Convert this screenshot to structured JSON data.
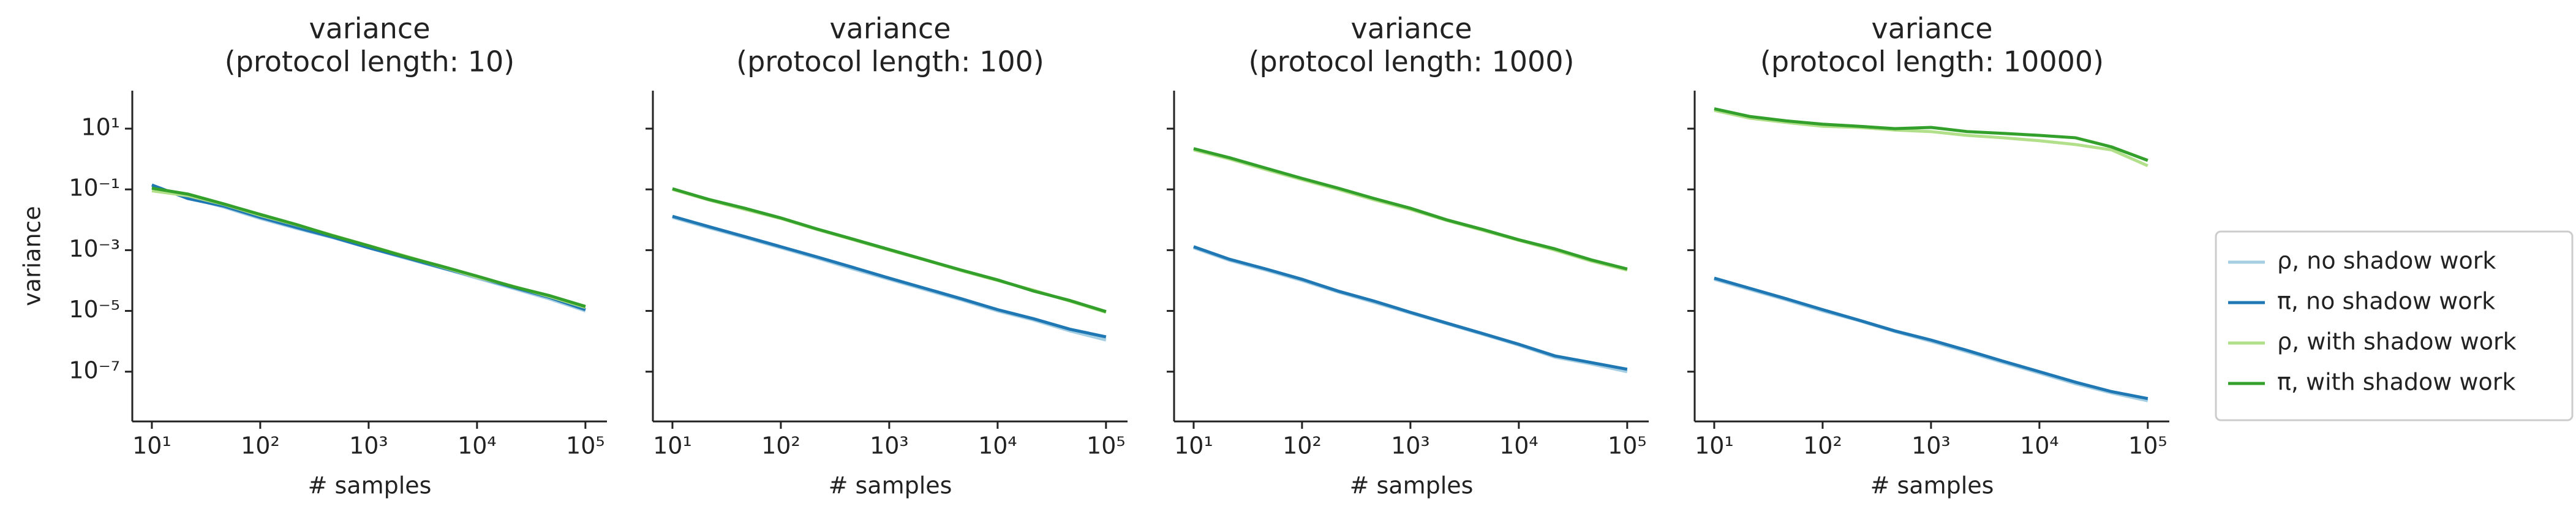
{
  "chart_data": [
    {
      "type": "line",
      "title": [
        "variance",
        "(protocol length: 10)"
      ],
      "xlabel": "# samples",
      "ylabel": "variance",
      "xscale": "log",
      "yscale": "log",
      "x": [
        10,
        21.5,
        46.4,
        100,
        215,
        464,
        1000,
        2154,
        4642,
        10000,
        21544,
        46416,
        100000
      ],
      "xlim": [
        6.6,
        158000
      ],
      "ylim": [
        2.3e-09,
        178
      ],
      "xticks": [
        {
          "value": 10,
          "label": "10¹"
        },
        {
          "value": 100,
          "label": "10²"
        },
        {
          "value": 1000,
          "label": "10³"
        },
        {
          "value": 10000,
          "label": "10⁴"
        },
        {
          "value": 100000,
          "label": "10⁵"
        }
      ],
      "yticks": [
        {
          "value": 10,
          "label": "10¹"
        },
        {
          "value": 0.1,
          "label": "10⁻¹"
        },
        {
          "value": 0.001,
          "label": "10⁻³"
        },
        {
          "value": 1e-05,
          "label": "10⁻⁵"
        },
        {
          "value": 1e-07,
          "label": "10⁻⁷"
        }
      ],
      "series": [
        {
          "name": "ρ, no shadow work",
          "color": "#a6cee3",
          "values": [
            0.12,
            0.055,
            0.026,
            0.011,
            0.0052,
            0.0026,
            0.0012,
            0.00055,
            0.00026,
            0.00012,
            5.5e-05,
            2.5e-05,
            1e-05
          ]
        },
        {
          "name": "π, no shadow work",
          "color": "#1f78b4",
          "values": [
            0.14,
            0.05,
            0.028,
            0.012,
            0.0056,
            0.0027,
            0.0012,
            0.00058,
            0.00027,
            0.00013,
            6e-05,
            2.8e-05,
            1.1e-05
          ]
        },
        {
          "name": "ρ, with shadow work",
          "color": "#b2df8a",
          "values": [
            0.09,
            0.062,
            0.032,
            0.014,
            0.0068,
            0.0031,
            0.0014,
            0.00065,
            0.00029,
            0.00013,
            6.5e-05,
            3e-05,
            1.3e-05
          ]
        },
        {
          "name": "π, with shadow work",
          "color": "#33a02c",
          "values": [
            0.11,
            0.07,
            0.033,
            0.015,
            0.007,
            0.003,
            0.0014,
            0.00062,
            0.0003,
            0.00014,
            6.3e-05,
            3.2e-05,
            1.4e-05
          ]
        }
      ]
    },
    {
      "type": "line",
      "title": [
        "variance",
        "(protocol length: 100)"
      ],
      "xlabel": "# samples",
      "xscale": "log",
      "yscale": "log",
      "x": [
        10,
        21.5,
        46.4,
        100,
        215,
        464,
        1000,
        2154,
        4642,
        10000,
        21544,
        46416,
        100000
      ],
      "xlim": [
        6.6,
        158000
      ],
      "ylim": [
        2.3e-09,
        178
      ],
      "xticks": [
        {
          "value": 10,
          "label": "10¹"
        },
        {
          "value": 100,
          "label": "10²"
        },
        {
          "value": 1000,
          "label": "10³"
        },
        {
          "value": 10000,
          "label": "10⁴"
        },
        {
          "value": 100000,
          "label": "10⁵"
        }
      ],
      "series": [
        {
          "name": "ρ, no shadow work",
          "color": "#a6cee3",
          "values": [
            0.012,
            0.0055,
            0.0026,
            0.0012,
            0.00055,
            0.00024,
            0.00011,
            5e-05,
            2.3e-05,
            1e-05,
            5e-06,
            2.2e-06,
            1.1e-06
          ]
        },
        {
          "name": "π, no shadow work",
          "color": "#1f78b4",
          "values": [
            0.013,
            0.006,
            0.0028,
            0.0013,
            0.0006,
            0.00027,
            0.00012,
            5.5e-05,
            2.5e-05,
            1.1e-05,
            5.5e-06,
            2.5e-06,
            1.4e-06
          ]
        },
        {
          "name": "ρ, with shadow work",
          "color": "#b2df8a",
          "values": [
            0.1,
            0.045,
            0.022,
            0.011,
            0.0048,
            0.0022,
            0.001,
            0.00047,
            0.00021,
            0.0001,
            4.8e-05,
            2.1e-05,
            9e-06
          ]
        },
        {
          "name": "π, with shadow work",
          "color": "#33a02c",
          "values": [
            0.105,
            0.047,
            0.024,
            0.0115,
            0.005,
            0.0023,
            0.00105,
            0.00048,
            0.00022,
            0.000105,
            4.5e-05,
            2.2e-05,
            9.5e-06
          ]
        }
      ]
    },
    {
      "type": "line",
      "title": [
        "variance",
        "(protocol length: 1000)"
      ],
      "xlabel": "# samples",
      "xscale": "log",
      "yscale": "log",
      "x": [
        10,
        21.5,
        46.4,
        100,
        215,
        464,
        1000,
        2154,
        4642,
        10000,
        21544,
        46416,
        100000
      ],
      "xlim": [
        6.6,
        158000
      ],
      "ylim": [
        2.3e-09,
        178
      ],
      "xticks": [
        {
          "value": 10,
          "label": "10¹"
        },
        {
          "value": 100,
          "label": "10²"
        },
        {
          "value": 1000,
          "label": "10³"
        },
        {
          "value": 10000,
          "label": "10⁴"
        },
        {
          "value": 100000,
          "label": "10⁵"
        }
      ],
      "series": [
        {
          "name": "ρ, no shadow work",
          "color": "#a6cee3",
          "values": [
            0.0012,
            0.00046,
            0.00022,
            0.0001,
            4.2e-05,
            1.9e-05,
            8.5e-06,
            3.8e-06,
            1.7e-06,
            7.5e-07,
            3e-07,
            1.8e-07,
            1e-07
          ]
        },
        {
          "name": "π, no shadow work",
          "color": "#1f78b4",
          "values": [
            0.0013,
            0.0005,
            0.00024,
            0.00011,
            4.5e-05,
            2.1e-05,
            9e-06,
            4e-06,
            1.8e-06,
            8e-07,
            3.3e-07,
            2e-07,
            1.2e-07
          ]
        },
        {
          "name": "ρ, with shadow work",
          "color": "#b2df8a",
          "values": [
            2.0,
            1.0,
            0.45,
            0.21,
            0.1,
            0.045,
            0.022,
            0.0095,
            0.0045,
            0.0021,
            0.001,
            0.00044,
            0.00022
          ]
        },
        {
          "name": "π, with shadow work",
          "color": "#33a02c",
          "values": [
            2.2,
            1.1,
            0.5,
            0.23,
            0.11,
            0.05,
            0.024,
            0.01,
            0.0048,
            0.0022,
            0.0011,
            0.00048,
            0.00024
          ]
        }
      ]
    },
    {
      "type": "line",
      "title": [
        "variance",
        "(protocol length: 10000)"
      ],
      "xlabel": "# samples",
      "xscale": "log",
      "yscale": "log",
      "legend": "outside right",
      "x": [
        10,
        21.5,
        46.4,
        100,
        215,
        464,
        1000,
        2154,
        4642,
        10000,
        21544,
        46416,
        100000
      ],
      "xlim": [
        6.6,
        158000
      ],
      "ylim": [
        2.3e-09,
        178
      ],
      "xticks": [
        {
          "value": 10,
          "label": "10¹"
        },
        {
          "value": 100,
          "label": "10²"
        },
        {
          "value": 1000,
          "label": "10³"
        },
        {
          "value": 10000,
          "label": "10⁴"
        },
        {
          "value": 100000,
          "label": "10⁵"
        }
      ],
      "series": [
        {
          "name": "ρ, no shadow work",
          "color": "#a6cee3",
          "values": [
            0.00011,
            5e-05,
            2.3e-05,
            1e-05,
            4.8e-06,
            2.1e-06,
            1e-06,
            4.5e-07,
            2e-07,
            9e-08,
            4e-08,
            2e-08,
            1.1e-08
          ]
        },
        {
          "name": "π, no shadow work",
          "color": "#1f78b4",
          "values": [
            0.00012,
            5.5e-05,
            2.5e-05,
            1.1e-05,
            5e-06,
            2.2e-06,
            1.1e-06,
            5e-07,
            2.2e-07,
            1e-07,
            4.5e-08,
            2.2e-08,
            1.3e-08
          ]
        },
        {
          "name": "ρ, with shadow work",
          "color": "#b2df8a",
          "values": [
            40,
            22,
            16,
            12,
            11,
            9,
            8,
            6,
            5,
            4,
            3,
            2,
            0.6
          ]
        },
        {
          "name": "π, with shadow work",
          "color": "#33a02c",
          "values": [
            45,
            25,
            18,
            14,
            12,
            10,
            11,
            8,
            7,
            6,
            5,
            2.5,
            0.9
          ]
        }
      ]
    }
  ]
}
